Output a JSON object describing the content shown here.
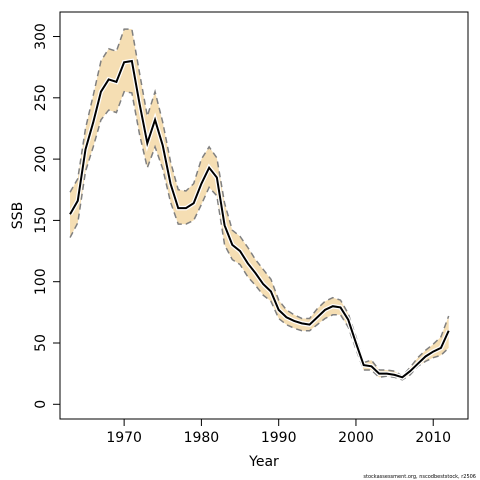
{
  "chart_data": {
    "type": "line",
    "title": "",
    "xlabel": "Year",
    "ylabel": "SSB",
    "xlim": [
      1961.7,
      2014.5
    ],
    "ylim": [
      -12,
      320
    ],
    "x_ticks": [
      1970,
      1980,
      1990,
      2000,
      2010
    ],
    "y_ticks": [
      0,
      50,
      100,
      150,
      200,
      250,
      300
    ],
    "grid": false,
    "legend": "none",
    "credit": "stockassessment.org, nscodbeststock, r2506",
    "colors": {
      "band": "#f5deb3",
      "line": "#000000",
      "bound": "#808080"
    },
    "series": [
      {
        "role": "estimate",
        "x": [
          1963,
          1964,
          1965,
          1966,
          1967,
          1968,
          1969,
          1970,
          1971,
          1972,
          1973,
          1974,
          1975,
          1976,
          1977,
          1978,
          1979,
          1980,
          1981,
          1982,
          1983,
          1984,
          1985,
          1986,
          1987,
          1988,
          1989,
          1990,
          1991,
          1992,
          1993,
          1994,
          1995,
          1996,
          1997,
          1998,
          1999,
          2000,
          2001,
          2002,
          2003,
          2004,
          2005,
          2006,
          2007,
          2008,
          2009,
          2010,
          2011,
          2012
        ],
        "y": [
          155,
          166,
          208,
          230,
          255,
          265,
          263,
          279,
          280,
          245,
          213,
          232,
          211,
          180,
          160,
          160,
          164,
          180,
          193,
          185,
          146,
          130,
          125,
          115,
          107,
          98,
          92,
          77,
          71,
          68,
          66,
          65,
          71,
          77,
          80,
          79,
          69,
          50,
          32,
          31,
          25,
          25,
          24,
          22,
          27,
          33,
          39,
          43,
          46,
          60
        ]
      },
      {
        "role": "upper",
        "x": [
          1963,
          1964,
          1965,
          1966,
          1967,
          1968,
          1969,
          1970,
          1971,
          1972,
          1973,
          1974,
          1975,
          1976,
          1977,
          1978,
          1979,
          1980,
          1981,
          1982,
          1983,
          1984,
          1985,
          1986,
          1987,
          1988,
          1989,
          1990,
          1991,
          1992,
          1993,
          1994,
          1995,
          1996,
          1997,
          1998,
          1999,
          2000,
          2001,
          2002,
          2003,
          2004,
          2005,
          2006,
          2007,
          2008,
          2009,
          2010,
          2011,
          2012
        ],
        "y": [
          173,
          184,
          225,
          252,
          280,
          290,
          288,
          306,
          306,
          270,
          235,
          255,
          230,
          198,
          175,
          174,
          180,
          200,
          210,
          201,
          164,
          142,
          137,
          128,
          118,
          110,
          102,
          85,
          77,
          73,
          70,
          70,
          78,
          84,
          87,
          85,
          74,
          55,
          34,
          36,
          28,
          28,
          27,
          23,
          30,
          38,
          44,
          49,
          55,
          72
        ]
      },
      {
        "role": "lower",
        "x": [
          1963,
          1964,
          1965,
          1966,
          1967,
          1968,
          1969,
          1970,
          1971,
          1972,
          1973,
          1974,
          1975,
          1976,
          1977,
          1978,
          1979,
          1980,
          1981,
          1982,
          1983,
          1984,
          1985,
          1986,
          1987,
          1988,
          1989,
          1990,
          1991,
          1992,
          1993,
          1994,
          1995,
          1996,
          1997,
          1998,
          1999,
          2000,
          2001,
          2002,
          2003,
          2004,
          2005,
          2006,
          2007,
          2008,
          2009,
          2010,
          2011,
          2012
        ],
        "y": [
          136,
          148,
          190,
          210,
          232,
          240,
          238,
          255,
          254,
          220,
          193,
          210,
          192,
          165,
          147,
          147,
          150,
          163,
          177,
          170,
          130,
          118,
          114,
          104,
          97,
          89,
          84,
          70,
          65,
          62,
          60,
          60,
          65,
          70,
          73,
          73,
          63,
          45,
          28,
          28,
          22,
          23,
          22,
          20,
          24,
          31,
          35,
          38,
          40,
          46
        ]
      }
    ]
  }
}
